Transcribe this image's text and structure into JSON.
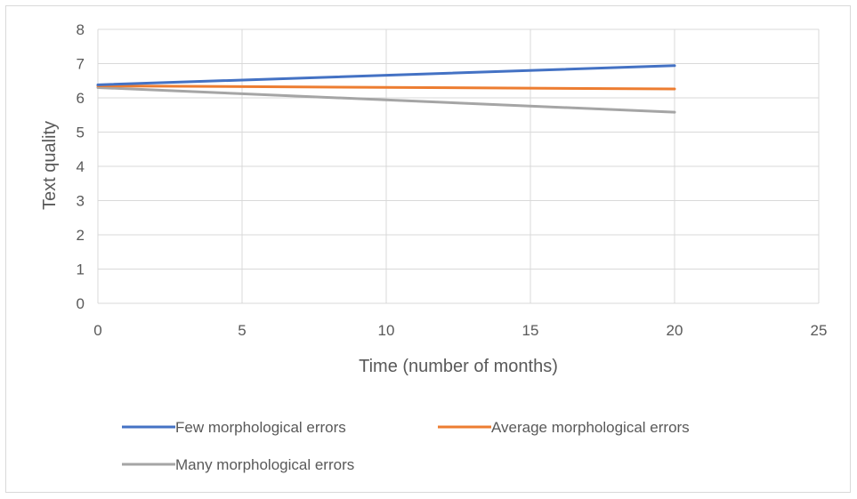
{
  "chart_data": {
    "type": "line",
    "title": "",
    "xlabel": "Time (number of months)",
    "ylabel": "Text quality",
    "xlim": [
      0,
      25
    ],
    "ylim": [
      0,
      8
    ],
    "xticks": [
      "0",
      "5",
      "10",
      "15",
      "20",
      "25"
    ],
    "yticks": [
      "0",
      "1",
      "2",
      "3",
      "4",
      "5",
      "6",
      "7",
      "8"
    ],
    "grid": true,
    "legend_position": "bottom",
    "series": [
      {
        "name": "Few morphological errors",
        "color": "#4472C4",
        "x": [
          0,
          20
        ],
        "y": [
          6.38,
          6.94
        ]
      },
      {
        "name": "Average morphological errors",
        "color": "#ED7D31",
        "x": [
          0,
          20
        ],
        "y": [
          6.35,
          6.26
        ]
      },
      {
        "name": "Many morphological errors",
        "color": "#A5A5A5",
        "x": [
          0,
          20
        ],
        "y": [
          6.3,
          5.58
        ]
      }
    ]
  }
}
